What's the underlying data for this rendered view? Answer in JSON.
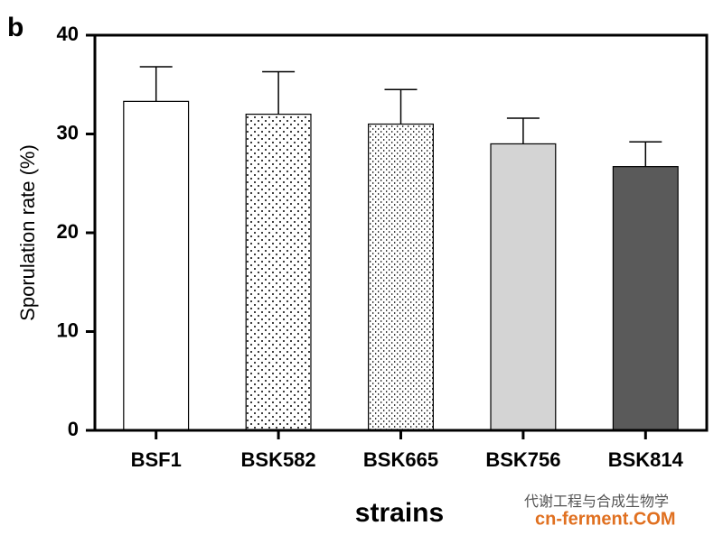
{
  "chart_data": {
    "type": "bar",
    "panel_label": "b",
    "xlabel": "strains",
    "ylabel": "Sporulation rate (%)",
    "categories": [
      "BSF1",
      "BSK582",
      "BSK665",
      "BSK756",
      "BSK814"
    ],
    "values": [
      33.3,
      32.0,
      31.0,
      29.0,
      26.7
    ],
    "errors": [
      3.5,
      4.3,
      3.5,
      2.6,
      2.5
    ],
    "colors": [
      "#ffffff",
      "#ffffff",
      "#ffffff",
      "#d4d4d4",
      "#5a5a5a"
    ],
    "patterns": [
      "none",
      "dots",
      "dense-dots",
      "none",
      "none"
    ],
    "ylim": [
      0,
      40
    ],
    "yticks": [
      0,
      10,
      20,
      30,
      40
    ],
    "grid": false
  },
  "watermark": {
    "name": "代谢工程与合成生物学",
    "site": "cn-ferment.COM"
  }
}
